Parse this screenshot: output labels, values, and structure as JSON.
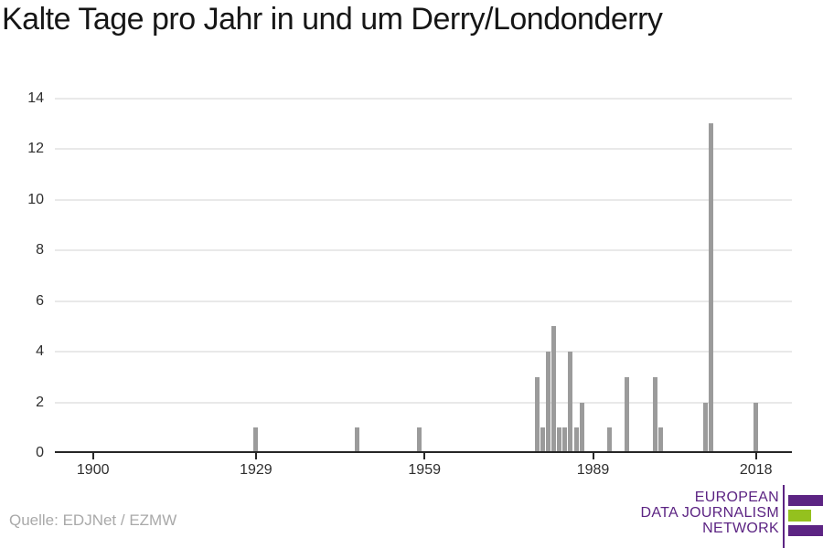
{
  "title": "Kalte Tage pro Jahr in und um Derry/Londonderry",
  "source": "Quelle: EDJNet / EZMW",
  "logo": {
    "lines": [
      "EUROPEAN",
      "DATA JOURNALISM",
      "NETWORK"
    ],
    "purple": "#5c2483",
    "green": "#94c11e"
  },
  "colors": {
    "bar": "#9b9b9b",
    "grid": "#e9e9e9",
    "axis": "#262626",
    "labels": "#2e2e2e",
    "source_text": "#a9a9a9",
    "title_text": "#161616"
  },
  "chart_data": {
    "type": "bar",
    "title": "Kalte Tage pro Jahr in und um Derry/Londonderry",
    "xlabel": "",
    "ylabel": "",
    "x": [
      1929,
      1947,
      1958,
      1979,
      1980,
      1981,
      1982,
      1983,
      1984,
      1985,
      1986,
      1987,
      1992,
      1995,
      2000,
      2001,
      2009,
      2010,
      2018
    ],
    "values": [
      1,
      1,
      1,
      3,
      1,
      4,
      5,
      1,
      1,
      4,
      1,
      2,
      1,
      3,
      3,
      1,
      2,
      13,
      2
    ],
    "x_ticks": [
      1900,
      1929,
      1959,
      1989,
      2018
    ],
    "y_ticks": [
      0,
      2,
      4,
      6,
      8,
      10,
      12,
      14
    ],
    "xlim": [
      1893,
      2024
    ],
    "ylim": [
      0,
      14
    ],
    "grid": "horizontal-only",
    "legend": false
  }
}
